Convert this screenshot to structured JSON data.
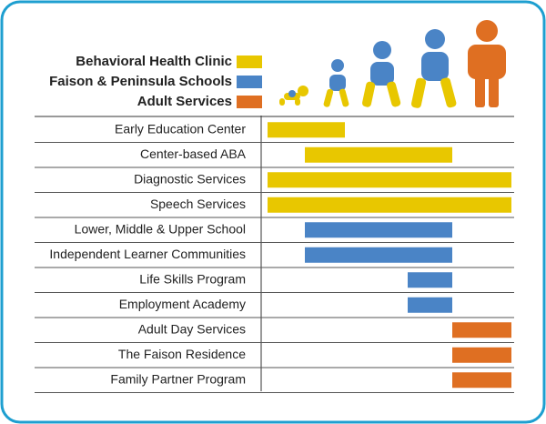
{
  "legend": [
    {
      "label": "Behavioral Health Clinic",
      "color": "#e8c700"
    },
    {
      "label": "Faison & Peninsula Schools",
      "color": "#4a84c6"
    },
    {
      "label": "Adult Services",
      "color": "#df6f22"
    }
  ],
  "rows": [
    {
      "label": "Early Education Center",
      "group": 0
    },
    {
      "label": "Center-based ABA",
      "group": 0
    },
    {
      "label": "Diagnostic Services",
      "group": 0
    },
    {
      "label": "Speech Services",
      "group": 0
    },
    {
      "label": "Lower, Middle & Upper School",
      "group": 1
    },
    {
      "label": "Independent Learner Communities",
      "group": 1
    },
    {
      "label": "Life Skills Program",
      "group": 1
    },
    {
      "label": "Employment Academy",
      "group": 1
    },
    {
      "label": "Adult Day Services",
      "group": 2
    },
    {
      "label": "The Faison Residence",
      "group": 2
    },
    {
      "label": "Family Partner Program",
      "group": 2
    }
  ]
}
